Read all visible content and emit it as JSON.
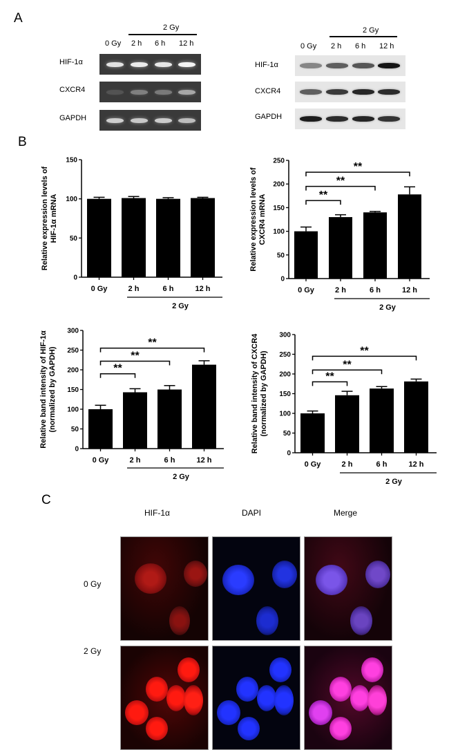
{
  "panel_a": {
    "letter": "A",
    "gel_pcr": {
      "group_label": "2 Gy",
      "lanes": [
        "0 Gy",
        "2 h",
        "6 h",
        "12 h"
      ],
      "rows": [
        {
          "label": "HIF-1α",
          "intensities": [
            0.85,
            0.9,
            0.88,
            0.95
          ]
        },
        {
          "label": "CXCR4",
          "intensities": [
            0.12,
            0.35,
            0.32,
            0.55
          ]
        },
        {
          "label": "GAPDH",
          "intensities": [
            0.75,
            0.72,
            0.74,
            0.66
          ]
        }
      ],
      "colors": {
        "background": "#3a3a3a",
        "band": "#f2f2f2"
      }
    },
    "western_blot": {
      "group_label": "2 Gy",
      "lanes": [
        "0 Gy",
        "2 h",
        "6 h",
        "12 h"
      ],
      "rows": [
        {
          "label": "HIF-1α",
          "intensities": [
            0.35,
            0.55,
            0.6,
            0.95
          ]
        },
        {
          "label": "CXCR4",
          "intensities": [
            0.55,
            0.75,
            0.85,
            0.82
          ]
        },
        {
          "label": "GAPDH",
          "intensities": [
            0.9,
            0.82,
            0.86,
            0.78
          ]
        }
      ],
      "colors": {
        "background": "#e6e6e6",
        "band": "#111111"
      }
    }
  },
  "panel_b": {
    "letter": "B",
    "group_label": "2 Gy",
    "significance_label": "**"
  },
  "panel_c": {
    "letter": "C",
    "columns": [
      "HIF-1α",
      "DAPI",
      "Merge"
    ],
    "rows": [
      "0 Gy",
      "2 Gy"
    ]
  },
  "chart_data": [
    {
      "type": "bar",
      "title": "",
      "ylabel": "Relative expression levels of HIF-1α mRNA",
      "ylabel_lines": [
        "Relative expression levels of",
        "HIF-1α mRNA"
      ],
      "xlabel": "",
      "categories": [
        "0 Gy",
        "2 h",
        "6 h",
        "12 h"
      ],
      "group_label": "2 Gy",
      "values": [
        100,
        101,
        100,
        101
      ],
      "errors": [
        2,
        2,
        1.5,
        1
      ],
      "ylim": [
        0,
        150
      ],
      "yticks": [
        0,
        50,
        100,
        150
      ],
      "grid": false,
      "significance": []
    },
    {
      "type": "bar",
      "title": "",
      "ylabel": "Relative expression levels of CXCR4 mRNA",
      "ylabel_lines": [
        "Relative expression levels of",
        "CXCR4 mRNA"
      ],
      "xlabel": "",
      "categories": [
        "0 Gy",
        "2 h",
        "6 h",
        "12 h"
      ],
      "group_label": "2 Gy",
      "values": [
        100,
        130,
        140,
        178
      ],
      "errors": [
        9,
        5,
        2,
        16
      ],
      "ylim": [
        0,
        250
      ],
      "yticks": [
        0,
        50,
        100,
        150,
        200,
        250
      ],
      "grid": false,
      "significance": [
        {
          "from": "0 Gy",
          "to": "2 h",
          "label": "**",
          "y": 165
        },
        {
          "from": "0 Gy",
          "to": "6 h",
          "label": "**",
          "y": 195
        },
        {
          "from": "0 Gy",
          "to": "12 h",
          "label": "**",
          "y": 225
        }
      ]
    },
    {
      "type": "bar",
      "title": "",
      "ylabel": "Relative band intensity of HIF-1α (normalized by GAPDH)",
      "ylabel_lines": [
        "Relative band intensity of HIF-1α",
        "(normalized by GAPDH)"
      ],
      "xlabel": "",
      "categories": [
        "0 Gy",
        "2 h",
        "6 h",
        "12 h"
      ],
      "group_label": "2 Gy",
      "values": [
        100,
        143,
        150,
        213
      ],
      "errors": [
        10,
        9,
        10,
        10
      ],
      "ylim": [
        0,
        300
      ],
      "yticks": [
        0,
        50,
        100,
        150,
        200,
        250,
        300
      ],
      "grid": false,
      "significance": [
        {
          "from": "0 Gy",
          "to": "2 h",
          "label": "**",
          "y": 190
        },
        {
          "from": "0 Gy",
          "to": "6 h",
          "label": "**",
          "y": 222
        },
        {
          "from": "0 Gy",
          "to": "12 h",
          "label": "**",
          "y": 255
        }
      ]
    },
    {
      "type": "bar",
      "title": "",
      "ylabel": "Relative band intensity of CXCR4 (normalized by GAPDH)",
      "ylabel_lines": [
        "Relative band intensity of CXCR4",
        "(normalized by GAPDH)"
      ],
      "xlabel": "",
      "categories": [
        "0 Gy",
        "2 h",
        "6 h",
        "12 h"
      ],
      "group_label": "2 Gy",
      "values": [
        100,
        146,
        163,
        181
      ],
      "errors": [
        6,
        10,
        5,
        6
      ],
      "ylim": [
        0,
        300
      ],
      "yticks": [
        0,
        50,
        100,
        150,
        200,
        250,
        300
      ],
      "grid": false,
      "significance": [
        {
          "from": "0 Gy",
          "to": "2 h",
          "label": "**",
          "y": 180
        },
        {
          "from": "0 Gy",
          "to": "6 h",
          "label": "**",
          "y": 210
        },
        {
          "from": "0 Gy",
          "to": "12 h",
          "label": "**",
          "y": 245
        }
      ]
    }
  ]
}
